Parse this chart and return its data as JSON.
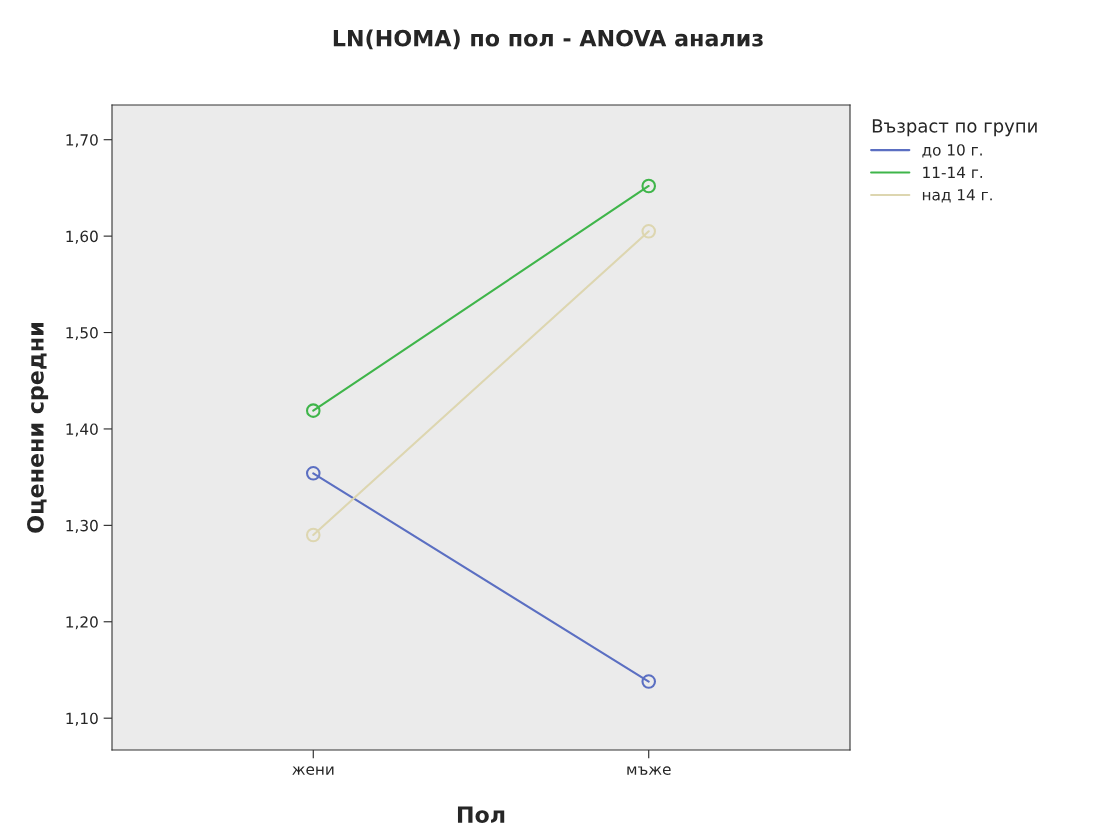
{
  "chart_data": {
    "type": "line",
    "title": "LN(HOMA) по пол - ANOVA анализ",
    "xlabel": "Пол",
    "ylabel": "Оценени средни",
    "legend_title": "Възраст по групи",
    "categories": [
      "жени",
      "мъже"
    ],
    "series": [
      {
        "name": "до 10 г.",
        "color": "#5b6fc2",
        "values": [
          1.354,
          1.138
        ]
      },
      {
        "name": "11-14 г.",
        "color": "#3fb54a",
        "values": [
          1.419,
          1.652
        ]
      },
      {
        "name": "над 14 г.",
        "color": "#ddd6b0",
        "values": [
          1.29,
          1.605
        ]
      }
    ],
    "ylim": [
      1.067,
      1.736
    ],
    "yticks": [
      {
        "value": 1.1,
        "label": "1,10"
      },
      {
        "value": 1.2,
        "label": "1,20"
      },
      {
        "value": 1.3,
        "label": "1,30"
      },
      {
        "value": 1.4,
        "label": "1,40"
      },
      {
        "value": 1.5,
        "label": "1,50"
      },
      {
        "value": 1.6,
        "label": "1,60"
      },
      {
        "value": 1.7,
        "label": "1,70"
      }
    ],
    "marker": "circle",
    "line_style": "solid",
    "legend": "right",
    "grid": false
  }
}
